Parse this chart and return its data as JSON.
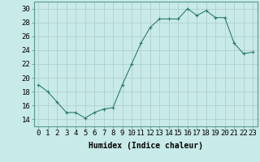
{
  "x": [
    0,
    1,
    2,
    3,
    4,
    5,
    6,
    7,
    8,
    9,
    10,
    11,
    12,
    13,
    14,
    15,
    16,
    17,
    18,
    19,
    20,
    21,
    22,
    23
  ],
  "y": [
    19,
    18,
    16.5,
    15,
    15,
    14.2,
    15,
    15.5,
    15.7,
    19,
    22,
    25,
    27.3,
    28.5,
    28.5,
    28.5,
    30,
    29,
    29.7,
    28.7,
    28.7,
    25,
    23.5,
    23.7
  ],
  "line_color": "#2e7d6e",
  "marker_color": "#2e7d6e",
  "bg_color": "#c8eae8",
  "grid_color_major": "#b0d0cc",
  "grid_color_minor": "#d8eeec",
  "xlabel": "Humidex (Indice chaleur)",
  "ylim": [
    13,
    31
  ],
  "xlim": [
    -0.5,
    23.5
  ],
  "yticks": [
    14,
    16,
    18,
    20,
    22,
    24,
    26,
    28,
    30
  ],
  "xticks": [
    0,
    1,
    2,
    3,
    4,
    5,
    6,
    7,
    8,
    9,
    10,
    11,
    12,
    13,
    14,
    15,
    16,
    17,
    18,
    19,
    20,
    21,
    22,
    23
  ],
  "xlabel_fontsize": 7,
  "tick_fontsize": 6.5,
  "spine_color": "#5a9a90"
}
